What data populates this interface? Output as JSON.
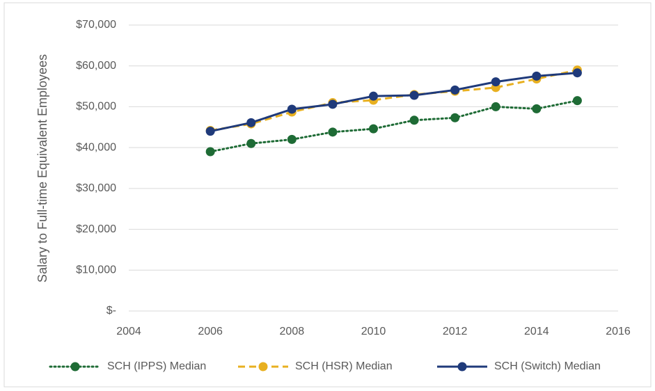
{
  "chart_data": {
    "type": "line",
    "y_label": "Salary to Full-time Equivalent Employees",
    "x": [
      2006,
      2007,
      2008,
      2009,
      2010,
      2011,
      2012,
      2013,
      2014,
      2015
    ],
    "series": [
      {
        "name": "SCH (IPPS) Median",
        "color": "#1e6b35",
        "line_style": "dotted",
        "values": [
          39000,
          41000,
          42000,
          43800,
          44600,
          46700,
          47300,
          50000,
          49500,
          51500
        ]
      },
      {
        "name": "SCH (HSR) Median",
        "color": "#e8b020",
        "line_style": "dashed",
        "values": [
          44200,
          45800,
          48700,
          51000,
          51600,
          53000,
          53800,
          54700,
          56800,
          59000
        ]
      },
      {
        "name": "SCH (Switch) Median",
        "color": "#1f3a7a",
        "line_style": "solid",
        "values": [
          44000,
          46100,
          49400,
          50600,
          52600,
          52800,
          54100,
          56100,
          57500,
          58300
        ]
      }
    ],
    "xlim": [
      2004,
      2016
    ],
    "xticks": [
      2004,
      2006,
      2008,
      2010,
      2012,
      2014,
      2016
    ],
    "ylim": [
      0,
      70000
    ],
    "yticks": [
      {
        "value": 0,
        "label": "$-"
      },
      {
        "value": 10000,
        "label": "$10,000"
      },
      {
        "value": 20000,
        "label": "$20,000"
      },
      {
        "value": 30000,
        "label": "$30,000"
      },
      {
        "value": 40000,
        "label": "$40,000"
      },
      {
        "value": 50000,
        "label": "$50,000"
      },
      {
        "value": 60000,
        "label": "$60,000"
      },
      {
        "value": 70000,
        "label": "$70,000"
      }
    ],
    "grid": true,
    "legend": "bottom"
  }
}
